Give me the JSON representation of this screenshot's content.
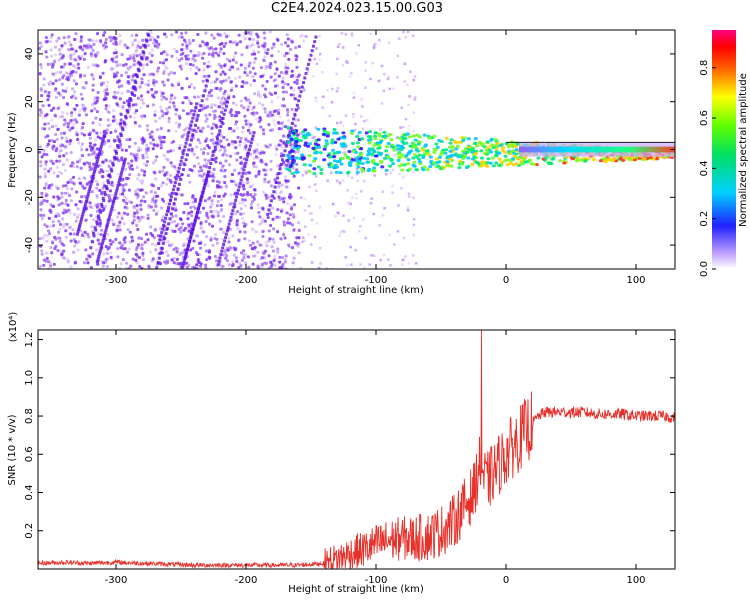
{
  "title": "C2E4.2024.023.15.00.G03",
  "colors": {
    "snr_line": "#e8302a",
    "spectrogram_points": "#7b2cf0"
  },
  "colorbar": {
    "label": "Normalized spectral amplitude",
    "ticks": [
      "0.0",
      "0.2",
      "0.4",
      "0.6",
      "0.8"
    ]
  },
  "chart_data": [
    {
      "type": "heatmap",
      "title": "C2E4.2024.023.15.00.G03",
      "xlabel": "Height of straight line (km)",
      "ylabel": "Frequency (Hz)",
      "xlim": [
        -360,
        130
      ],
      "ylim": [
        -50,
        50
      ],
      "x_ticks": [
        -300,
        -200,
        -100,
        0,
        100
      ],
      "x_tick_labels": [
        "-300",
        "-200",
        "-100",
        "0",
        "100"
      ],
      "y_ticks": [
        -40,
        -20,
        0,
        20,
        40
      ],
      "y_tick_labels": [
        "-40",
        "-20",
        "0",
        "20",
        "40"
      ],
      "colorscale": "rainbow (magenta-blue-cyan-green-yellow-red-pink)",
      "features": [
        {
          "description": "broadband noise",
          "x_range": [
            -360,
            -160
          ],
          "normalized_amplitude": 0.1
        },
        {
          "description": "signal band centered near 0 Hz",
          "x_range": [
            -170,
            130
          ],
          "freq_center": 0,
          "normalized_amplitude_peak": 0.9
        }
      ]
    },
    {
      "type": "line",
      "xlabel": "Height of straight line (km)",
      "ylabel": "SNR (10 * v/v)",
      "y_scale_label": "(x10⁴)",
      "xlim": [
        -360,
        130
      ],
      "ylim": [
        0,
        1.25
      ],
      "x_ticks": [
        -300,
        -200,
        -100,
        0,
        100
      ],
      "x_tick_labels": [
        "-300",
        "-200",
        "-100",
        "0",
        "100"
      ],
      "y_ticks": [
        0.2,
        0.4,
        0.6,
        0.8,
        1.0,
        1.2
      ],
      "y_tick_labels": [
        "0.2",
        "0.4",
        "0.6",
        "0.8",
        "1.0",
        "1.2"
      ],
      "series": [
        {
          "color": "#e8302a",
          "x": [
            -360,
            -340,
            -320,
            -300,
            -280,
            -260,
            -240,
            -220,
            -200,
            -180,
            -160,
            -140,
            -130,
            -120,
            -110,
            -100,
            -90,
            -80,
            -70,
            -60,
            -50,
            -40,
            -30,
            -25,
            -20,
            -18,
            -15,
            -10,
            -5,
            0,
            5,
            10,
            15,
            20,
            25,
            30,
            40,
            50,
            60,
            70,
            80,
            90,
            100,
            110,
            120,
            130
          ],
          "y": [
            0.03,
            0.035,
            0.03,
            0.035,
            0.03,
            0.025,
            0.02,
            0.02,
            0.02,
            0.02,
            0.02,
            0.03,
            0.05,
            0.08,
            0.1,
            0.13,
            0.15,
            0.16,
            0.16,
            0.17,
            0.2,
            0.25,
            0.35,
            0.4,
            0.55,
            0.5,
            0.45,
            0.5,
            0.55,
            0.6,
            0.64,
            0.68,
            0.72,
            0.76,
            0.8,
            0.82,
            0.82,
            0.82,
            0.82,
            0.81,
            0.81,
            0.81,
            0.8,
            0.8,
            0.8,
            0.79
          ],
          "peak": {
            "x": -19,
            "y": 1.25
          }
        }
      ]
    }
  ]
}
